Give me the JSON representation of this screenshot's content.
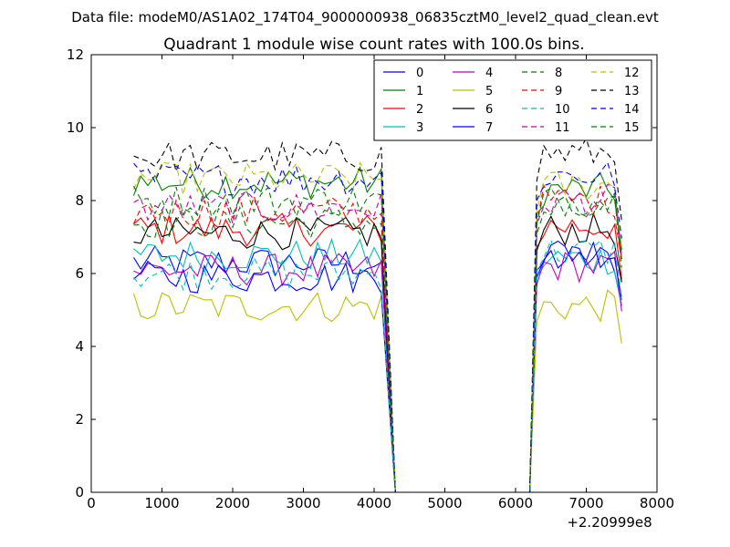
{
  "figure": {
    "suptitle": "Data file: modeM0/AS1A02_174T04_9000000938_06835cztM0_level2_quad_clean.evt",
    "title": "Quadrant 1 module wise count rates with 100.0s bins.",
    "x_offset_label": "+2.20999e8"
  },
  "chart_data": {
    "type": "line",
    "title": "Quadrant 1 module wise count rates with 100.0s bins.",
    "xlabel": "",
    "ylabel": "",
    "xlim": [
      0,
      8000
    ],
    "ylim": [
      0,
      12
    ],
    "xticks": [
      0,
      1000,
      2000,
      3000,
      4000,
      5000,
      6000,
      7000,
      8000
    ],
    "yticks": [
      0,
      2,
      4,
      6,
      8,
      10,
      12
    ],
    "x_offset": "+2.20999e8",
    "legend": "top-right",
    "segments": [
      {
        "start": 600,
        "step": 100,
        "count": 36
      },
      {
        "start": 6300,
        "step": 100,
        "count": 13
      }
    ],
    "gap": {
      "start": 4300,
      "end": 6200,
      "value": 0
    },
    "series": [
      {
        "name": "0",
        "color": "#0000ff",
        "style": "solid",
        "mean1": 6.3,
        "mean2": 6.4
      },
      {
        "name": "1",
        "color": "#008000",
        "style": "solid",
        "mean1": 8.5,
        "mean2": 8.3
      },
      {
        "name": "2",
        "color": "#ff0000",
        "style": "solid",
        "mean1": 7.2,
        "mean2": 7.3
      },
      {
        "name": "3",
        "color": "#00bfbf",
        "style": "solid",
        "mean1": 6.5,
        "mean2": 6.4
      },
      {
        "name": "4",
        "color": "#bf00bf",
        "style": "solid",
        "mean1": 6.1,
        "mean2": 6.2
      },
      {
        "name": "5",
        "color": "#bfbf00",
        "style": "solid",
        "mean1": 5.1,
        "mean2": 5.1
      },
      {
        "name": "6",
        "color": "#000000",
        "style": "solid",
        "mean1": 7.1,
        "mean2": 7.2
      },
      {
        "name": "7",
        "color": "#0000ff",
        "style": "solid",
        "mean1": 5.9,
        "mean2": 6.6
      },
      {
        "name": "8",
        "color": "#008000",
        "style": "dashed",
        "mean1": 7.4,
        "mean2": 7.7
      },
      {
        "name": "9",
        "color": "#ff0000",
        "style": "dashed",
        "mean1": 7.7,
        "mean2": 8.0
      },
      {
        "name": "10",
        "color": "#00bfbf",
        "style": "dashed",
        "mean1": 6.0,
        "mean2": 6.6
      },
      {
        "name": "11",
        "color": "#bf00bf",
        "style": "dashed",
        "mean1": 7.8,
        "mean2": 8.0
      },
      {
        "name": "12",
        "color": "#bfbf00",
        "style": "dashed",
        "mean1": 8.6,
        "mean2": 8.4
      },
      {
        "name": "13",
        "color": "#000000",
        "style": "dashed",
        "mean1": 9.2,
        "mean2": 9.3
      },
      {
        "name": "14",
        "color": "#0000ff",
        "style": "dashed",
        "mean1": 8.6,
        "mean2": 8.7
      },
      {
        "name": "15",
        "color": "#008000",
        "style": "dashed",
        "mean1": 8.0,
        "mean2": 8.0
      }
    ]
  }
}
